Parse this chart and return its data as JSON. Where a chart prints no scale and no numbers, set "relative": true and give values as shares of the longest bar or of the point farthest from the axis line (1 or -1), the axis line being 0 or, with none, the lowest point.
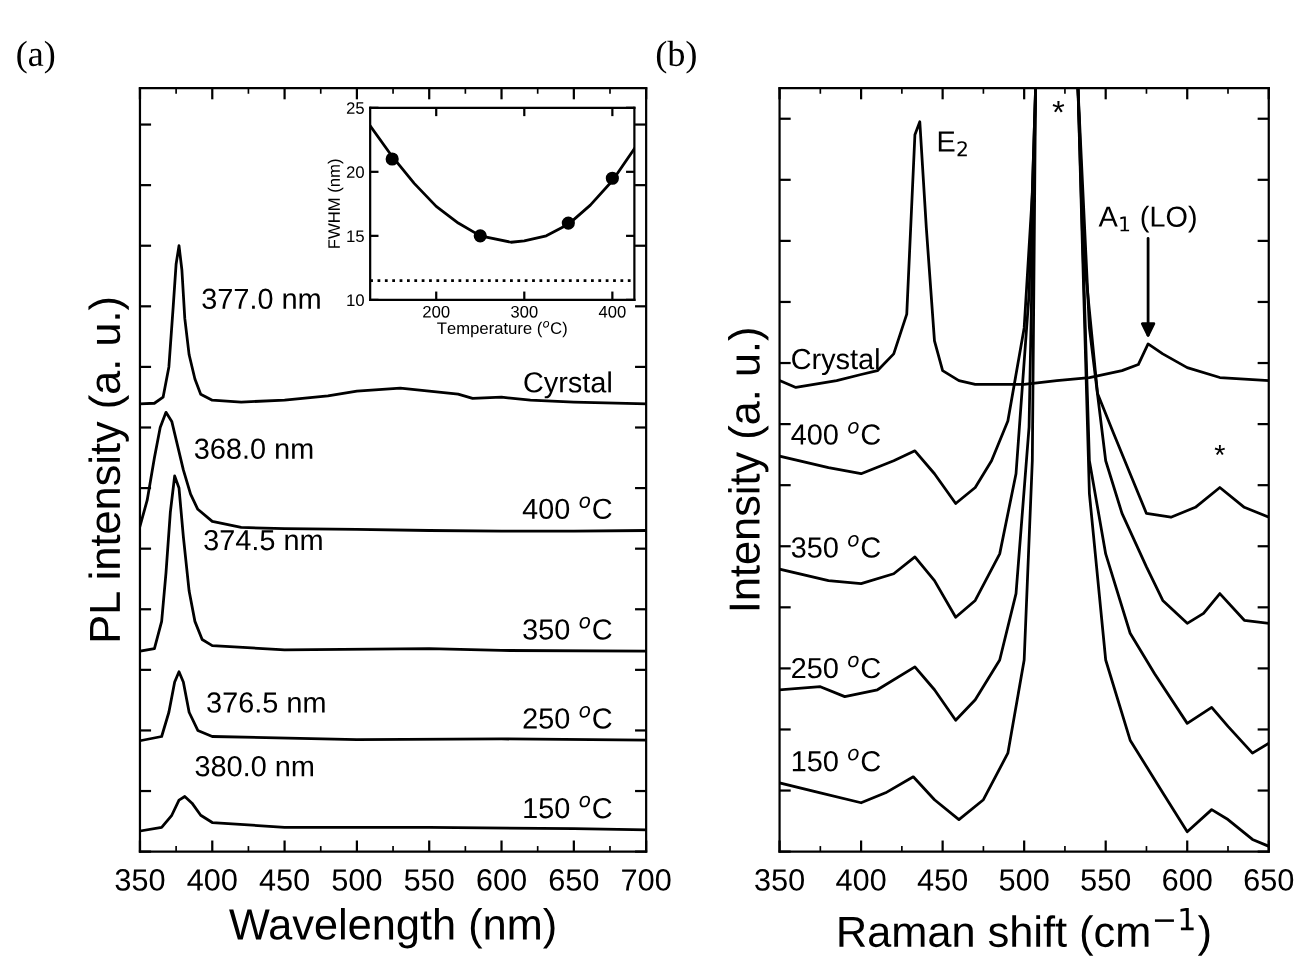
{
  "chart_data": [
    {
      "type": "line",
      "title": "(a)",
      "xlabel": "Wavelength (nm)",
      "ylabel": "PL intensity (a. u.)",
      "relative": true,
      "tick_labels": "x",
      "xlim": [
        350,
        700
      ],
      "xticks": [
        350,
        400,
        450,
        500,
        550,
        600,
        650,
        700
      ],
      "grid": false,
      "legend": "right",
      "marker": "none",
      "line_style": "solid",
      "series": [
        {
          "name": "Cyrstal",
          "color": "#000000",
          "x": [
            350,
            360,
            366,
            370,
            373,
            375,
            377,
            379,
            381,
            384,
            388,
            392,
            400,
            420,
            450,
            480,
            500,
            530,
            550,
            570,
            580,
            600,
            620,
            650,
            700
          ],
          "values": [
            0.739,
            0.74,
            0.75,
            0.8,
            0.9,
            0.97,
            1.0,
            0.96,
            0.88,
            0.82,
            0.78,
            0.755,
            0.745,
            0.742,
            0.745,
            0.752,
            0.76,
            0.765,
            0.76,
            0.755,
            0.748,
            0.75,
            0.745,
            0.742,
            0.739
          ]
        },
        {
          "name": "400 $^{o}$C",
          "color": "#000000",
          "x": [
            350,
            355,
            360,
            364,
            368,
            372,
            376,
            380,
            385,
            390,
            400,
            420,
            450,
            500,
            550,
            600,
            650,
            700
          ],
          "values": [
            0.537,
            0.58,
            0.65,
            0.7,
            0.725,
            0.71,
            0.67,
            0.63,
            0.59,
            0.565,
            0.545,
            0.535,
            0.533,
            0.532,
            0.53,
            0.529,
            0.529,
            0.53
          ]
        },
        {
          "name": "350 $^{o}$C",
          "color": "#000000",
          "x": [
            350,
            360,
            365,
            368,
            371,
            374,
            377,
            380,
            384,
            388,
            393,
            400,
            450,
            550,
            600,
            700
          ],
          "values": [
            0.331,
            0.335,
            0.38,
            0.46,
            0.56,
            0.62,
            0.6,
            0.52,
            0.43,
            0.38,
            0.35,
            0.34,
            0.333,
            0.335,
            0.332,
            0.331
          ]
        },
        {
          "name": "250 $^{o}$C",
          "color": "#000000",
          "x": [
            350,
            365,
            370,
            374,
            377,
            380,
            384,
            390,
            400,
            500,
            600,
            700
          ],
          "values": [
            0.183,
            0.19,
            0.23,
            0.28,
            0.297,
            0.28,
            0.23,
            0.2,
            0.19,
            0.185,
            0.186,
            0.184
          ]
        },
        {
          "name": "150 $^{o}$C",
          "color": "#000000",
          "x": [
            350,
            365,
            372,
            377,
            381,
            386,
            392,
            400,
            450,
            550,
            650,
            700
          ],
          "values": [
            0.034,
            0.04,
            0.06,
            0.085,
            0.091,
            0.08,
            0.06,
            0.048,
            0.04,
            0.04,
            0.038,
            0.036
          ]
        }
      ],
      "annotations": [
        {
          "text": "377.0 nm",
          "x": 377,
          "y": 1.0
        },
        {
          "text": "368.0 nm",
          "x": 368,
          "y": 0.725
        },
        {
          "text": "374.5 nm",
          "x": 374.5,
          "y": 0.62
        },
        {
          "text": "376.5 nm",
          "x": 376.5,
          "y": 0.297
        },
        {
          "text": "380.0 nm",
          "x": 380,
          "y": 0.091
        }
      ]
    },
    {
      "type": "line",
      "xlabel": "Temperature ($^{o}$C)",
      "ylabel": "FWHM (nm)",
      "xlim": [
        125,
        425
      ],
      "xticks": [
        200,
        300,
        400
      ],
      "ylim": [
        10,
        25
      ],
      "yticks": [
        10,
        15,
        20,
        25
      ],
      "grid": false,
      "legend": false,
      "marker": "none",
      "line_style": "solid",
      "series": [
        {
          "type": "line",
          "color": "#000000",
          "x": [
            125,
            150,
            175,
            200,
            225,
            250,
            285,
            300,
            325,
            350,
            375,
            400,
            425
          ],
          "values": [
            23.6,
            21.2,
            19.1,
            17.3,
            16.0,
            15.0,
            14.5,
            14.6,
            15.0,
            15.9,
            17.4,
            19.3,
            21.8
          ]
        },
        {
          "type": "scatter",
          "marker": "circle",
          "color": "#000000",
          "x": [
            150,
            250,
            350,
            400
          ],
          "values": [
            21,
            15,
            16,
            19.5
          ]
        }
      ],
      "ref_lines": [
        {
          "axis": "y",
          "value": 11.5,
          "line_style": "dotted",
          "color": "#000000"
        }
      ]
    },
    {
      "type": "line",
      "title": "(b)",
      "xlabel": "Raman shift (cm$^{−1}$)",
      "ylabel": "Intensity (a. u.)",
      "relative": true,
      "tick_labels": "x",
      "xlim": [
        350,
        650
      ],
      "xticks": [
        350,
        400,
        450,
        500,
        550,
        600,
        650
      ],
      "grid": false,
      "legend": "left",
      "marker": "none",
      "line_style": "solid",
      "series": [
        {
          "name": "Crystal",
          "color": "#000000",
          "x": [
            350,
            360,
            385,
            400,
            410,
            420,
            428,
            433,
            436,
            440,
            445,
            450,
            460,
            470,
            500,
            520,
            540,
            560,
            570,
            576,
            585,
            600,
            620,
            650
          ],
          "values": [
            0.617,
            0.608,
            0.617,
            0.625,
            0.63,
            0.652,
            0.704,
            0.939,
            0.956,
            0.817,
            0.669,
            0.63,
            0.617,
            0.612,
            0.612,
            0.617,
            0.621,
            0.63,
            0.638,
            0.665,
            0.652,
            0.634,
            0.621,
            0.617
          ]
        },
        {
          "name": "400 $^{o}$C",
          "color": "#000000",
          "x": [
            350,
            380,
            400,
            420,
            433,
            445,
            458,
            470,
            480,
            490,
            500,
            505,
            507,
            520,
            533,
            537,
            545,
            555,
            565,
            575,
            590,
            605,
            620,
            635,
            650
          ],
          "values": [
            0.518,
            0.503,
            0.495,
            0.512,
            0.525,
            0.495,
            0.456,
            0.477,
            0.512,
            0.564,
            0.686,
            0.861,
            1.0,
            null,
            1.0,
            0.774,
            0.6,
            0.547,
            0.495,
            0.443,
            0.438,
            0.451,
            0.477,
            0.451,
            0.438
          ]
        },
        {
          "name": "350 $^{o}$C",
          "color": "#000000",
          "x": [
            350,
            380,
            400,
            420,
            433,
            445,
            458,
            470,
            485,
            495,
            503,
            507,
            520,
            533,
            540,
            550,
            560,
            575,
            585,
            600,
            610,
            620,
            635,
            650
          ],
          "values": [
            0.37,
            0.355,
            0.351,
            0.364,
            0.386,
            0.355,
            0.307,
            0.329,
            0.39,
            0.495,
            0.73,
            1.0,
            null,
            1.0,
            0.686,
            0.512,
            0.443,
            0.373,
            0.329,
            0.299,
            0.312,
            0.338,
            0.303,
            0.299
          ]
        },
        {
          "name": "250 $^{o}$C",
          "color": "#000000",
          "x": [
            350,
            375,
            390,
            410,
            433,
            445,
            458,
            470,
            485,
            495,
            503,
            507,
            520,
            533,
            540,
            550,
            565,
            580,
            600,
            615,
            625,
            640,
            650
          ],
          "values": [
            0.212,
            0.216,
            0.203,
            0.212,
            0.242,
            0.212,
            0.172,
            0.199,
            0.251,
            0.338,
            0.556,
            1.0,
            null,
            1.0,
            0.512,
            0.39,
            0.286,
            0.233,
            0.168,
            0.189,
            0.164,
            0.129,
            0.142
          ]
        },
        {
          "name": "150 $^{o}$C",
          "color": "#000000",
          "x": [
            350,
            375,
            400,
            415,
            432,
            445,
            460,
            475,
            490,
            500,
            505,
            507,
            520,
            533,
            540,
            550,
            565,
            585,
            600,
            615,
            625,
            640,
            650
          ],
          "values": [
            0.09,
            0.077,
            0.064,
            0.077,
            0.098,
            0.068,
            0.042,
            0.068,
            0.129,
            0.251,
            0.512,
            1.0,
            null,
            1.0,
            0.469,
            0.251,
            0.146,
            0.077,
            0.026,
            0.055,
            0.042,
            0.016,
            0.007
          ]
        }
      ],
      "annotations": [
        {
          "text": "E$_{2}$",
          "x": 436,
          "y": 0.956
        },
        "*",
        {
          "text": "A$_{1}$ (LO)",
          "x": 576,
          "y": 0.665
        },
        {
          "text": "*",
          "x": 620,
          "y": 0.477
        }
      ]
    }
  ]
}
